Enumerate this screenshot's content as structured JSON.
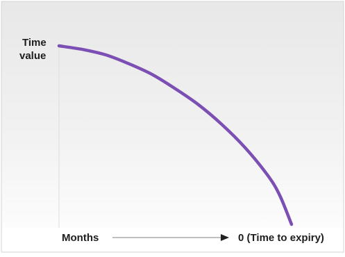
{
  "chart_data": {
    "type": "line",
    "title": "",
    "ylabel_line1": "Time",
    "ylabel_line2": "value",
    "xlabel_left": "Months",
    "xlabel_right": "0 (Time to expiry)",
    "x_direction": "decreasing toward expiry",
    "series": [
      {
        "values_description": "time value decay",
        "x": [
          1.0,
          0.9,
          0.8,
          0.7,
          0.6,
          0.5,
          0.4,
          0.3,
          0.2,
          0.1,
          0.05,
          0.0
        ],
        "y": [
          1.0,
          0.98,
          0.95,
          0.9,
          0.84,
          0.76,
          0.67,
          0.56,
          0.43,
          0.27,
          0.16,
          0.0
        ]
      }
    ],
    "grid": false,
    "colors": {
      "curve": "#7b4fb3",
      "background_top": "#e9e9e9",
      "background_bottom": "#ffffff",
      "axis": "#cccccc",
      "arrow": "#999999",
      "arrow_head": "#222222"
    }
  }
}
